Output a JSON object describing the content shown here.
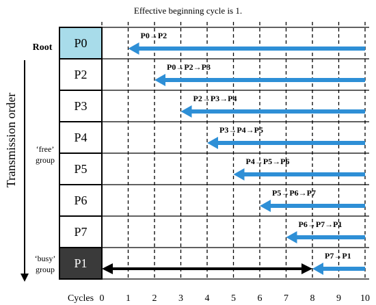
{
  "title": "Effective beginning cycle is 1.",
  "labels": {
    "root": "Root",
    "free_group": [
      "‘free’",
      "group"
    ],
    "busy_group": [
      "‘busy’",
      "group"
    ],
    "transmission_order": "Transmission order",
    "cycles": "Cycles"
  },
  "colors": {
    "arrow_blue": "#2e8fd6",
    "root_fill": "#a8dcea",
    "busy_fill": "#3a3a3a",
    "busy_text": "#ffffff",
    "grid_line": "#000000"
  },
  "cycle_ticks": [
    "0",
    "1",
    "2",
    "3",
    "4",
    "5",
    "6",
    "7",
    "8",
    "9",
    "10"
  ],
  "rows": [
    {
      "id": "P0",
      "path": "P0→P2",
      "arrow_start_cycle": 1,
      "arrow_end_cycle": 10,
      "group": "root"
    },
    {
      "id": "P2",
      "path": "P0→P2→P3",
      "arrow_start_cycle": 2,
      "arrow_end_cycle": 10,
      "group": "free"
    },
    {
      "id": "P3",
      "path": "P2→P3→P4",
      "arrow_start_cycle": 3,
      "arrow_end_cycle": 10,
      "group": "free"
    },
    {
      "id": "P4",
      "path": "P3→P4→P5",
      "arrow_start_cycle": 4,
      "arrow_end_cycle": 10,
      "group": "free"
    },
    {
      "id": "P5",
      "path": "P4→P5→P6",
      "arrow_start_cycle": 5,
      "arrow_end_cycle": 10,
      "group": "free"
    },
    {
      "id": "P6",
      "path": "P5→P6→P7",
      "arrow_start_cycle": 6,
      "arrow_end_cycle": 10,
      "group": "free"
    },
    {
      "id": "P7",
      "path": "P6→P7→P1",
      "arrow_start_cycle": 7,
      "arrow_end_cycle": 10,
      "group": "free"
    },
    {
      "id": "P1",
      "path": "P7→P1",
      "arrow_start_cycle": 8,
      "arrow_end_cycle": 10,
      "group": "busy",
      "busy_arrow_start_cycle": 0,
      "busy_arrow_end_cycle": 8
    }
  ]
}
